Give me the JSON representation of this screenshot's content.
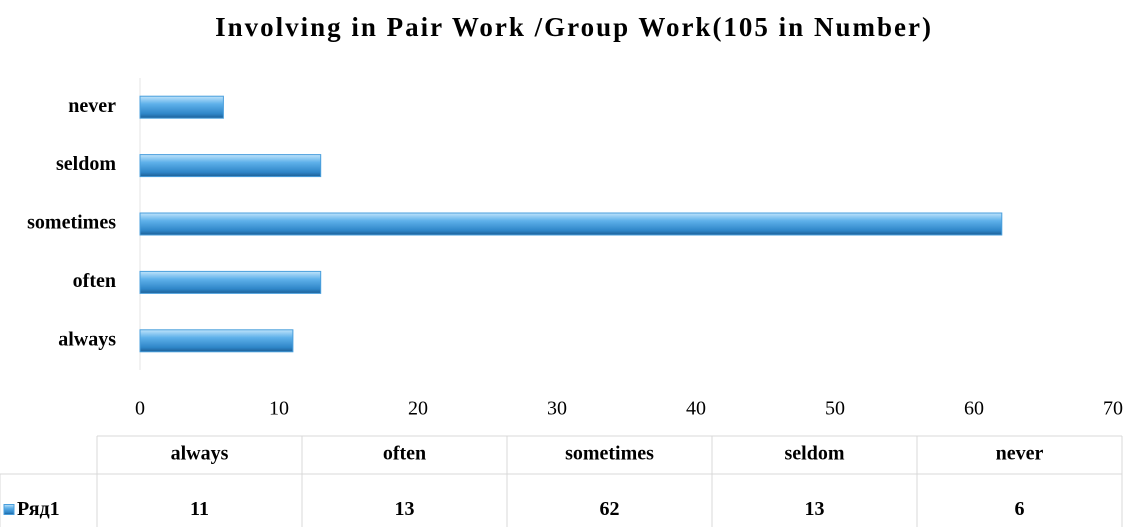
{
  "chart_data": {
    "type": "bar",
    "orientation": "horizontal",
    "title": "Involving in Pair Work /Group Work(105 in Number)",
    "categories": [
      "always",
      "often",
      "sometimes",
      "seldom",
      "never"
    ],
    "series": [
      {
        "name": "Ряд1",
        "color": "#4a9fdc",
        "values": [
          11,
          13,
          62,
          13,
          6
        ]
      }
    ],
    "xlim": [
      0,
      70
    ],
    "xticks": [
      0,
      10,
      20,
      30,
      40,
      50,
      60,
      70
    ],
    "grid": false,
    "data_table": true
  }
}
